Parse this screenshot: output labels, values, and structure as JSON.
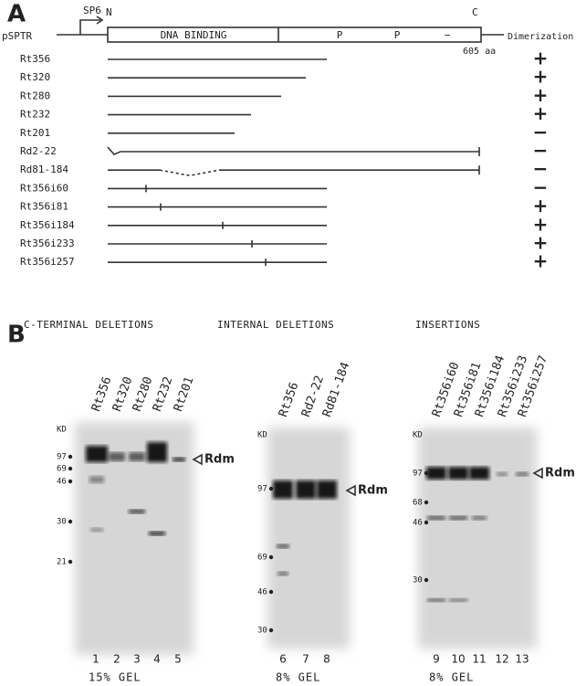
{
  "panel_a": {
    "label": "A",
    "plasmid": "pSPTR",
    "promoter": "SP6",
    "n_terminus": "N",
    "c_terminus": "C",
    "domain": "DNA BINDING",
    "motifs": [
      "P",
      "P",
      "−"
    ],
    "length": "605 aa",
    "column_header": "Dimerization",
    "constructs": [
      {
        "name": "Rt356",
        "dimerization": "+"
      },
      {
        "name": "Rt320",
        "dimerization": "+"
      },
      {
        "name": "Rt280",
        "dimerization": "+"
      },
      {
        "name": "Rt232",
        "dimerization": "+"
      },
      {
        "name": "Rt201",
        "dimerization": "−"
      },
      {
        "name": "Rd2-22",
        "dimerization": "−"
      },
      {
        "name": "Rd81-184",
        "dimerization": "−"
      },
      {
        "name": "Rt356i60",
        "dimerization": "−"
      },
      {
        "name": "Rt356i81",
        "dimerization": "+"
      },
      {
        "name": "Rt356i184",
        "dimerization": "+"
      },
      {
        "name": "Rt356i233",
        "dimerization": "+"
      },
      {
        "name": "Rt356i257",
        "dimerization": "+"
      }
    ]
  },
  "panel_b": {
    "label": "B",
    "gels": [
      {
        "title": "C-TERMINAL DELETIONS",
        "lanes": [
          "Rt356",
          "Rt320",
          "Rt280",
          "Rt232",
          "Rt201"
        ],
        "markers_header": "KD",
        "markers": [
          "97",
          "69",
          "46",
          "30",
          "21"
        ],
        "band_label": "Rdm",
        "lane_numbers": [
          "1",
          "2",
          "3",
          "4",
          "5"
        ],
        "gel": "15% GEL"
      },
      {
        "title": "INTERNAL DELETIONS",
        "lanes": [
          "Rt356",
          "Rd2-22",
          "Rd81-184"
        ],
        "markers_header": "KD",
        "markers": [
          "97",
          "69",
          "46",
          "30"
        ],
        "band_label": "Rdm",
        "lane_numbers": [
          "6",
          "7",
          "8"
        ],
        "gel": "8% GEL"
      },
      {
        "title": "INSERTIONS",
        "lanes": [
          "Rt356i60",
          "Rt356i81",
          "Rt356i184",
          "Rt356i233",
          "Rt356i257"
        ],
        "markers_header": "KD",
        "markers": [
          "97",
          "68",
          "46",
          "30"
        ],
        "band_label": "Rdm",
        "lane_numbers": [
          "9",
          "10",
          "11",
          "12",
          "13"
        ],
        "gel": "8% GEL"
      }
    ]
  }
}
